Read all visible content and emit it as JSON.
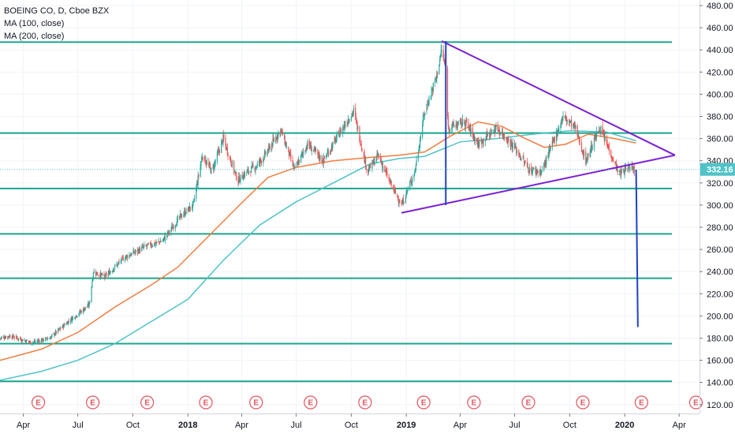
{
  "legend": {
    "symbol_line": "BOEING CO, D, Cboe BZX",
    "ma100_label": "MA (100, close)",
    "ma200_label": "MA (200, close)"
  },
  "colors": {
    "up": "#26a69a",
    "down": "#ef5350",
    "ma100": "#f57c3f",
    "ma200": "#4fc3c7",
    "levels": "#1aa58b",
    "triangle": "#7b1fd6",
    "projection": "#1e40c8",
    "price_label_bg": "#4fc3c7",
    "events": "#e2555e"
  },
  "price_label": "332.16",
  "event_marker": "E",
  "chart_data": {
    "type": "candlestick",
    "title": "BOEING CO, D, Cboe BZX",
    "xlabel": "",
    "ylabel": "",
    "ylim": [
      112,
      485
    ],
    "x_range": [
      "2017-02-21",
      "2020-05-05"
    ],
    "y_ticks": [
      "120.00",
      "140.00",
      "160.00",
      "180.00",
      "200.00",
      "220.00",
      "240.00",
      "260.00",
      "280.00",
      "300.00",
      "320.00",
      "340.00",
      "360.00",
      "380.00",
      "400.00",
      "420.00",
      "440.00",
      "460.00",
      "480.00"
    ],
    "x_ticks": [
      {
        "label": "Apr",
        "date": "2017-04-01",
        "bold": false
      },
      {
        "label": "Jul",
        "date": "2017-07-01",
        "bold": false
      },
      {
        "label": "Oct",
        "date": "2017-10-01",
        "bold": false
      },
      {
        "label": "2018",
        "date": "2018-01-01",
        "bold": true
      },
      {
        "label": "Apr",
        "date": "2018-04-01",
        "bold": false
      },
      {
        "label": "Jul",
        "date": "2018-07-01",
        "bold": false
      },
      {
        "label": "Oct",
        "date": "2018-10-01",
        "bold": false
      },
      {
        "label": "2019",
        "date": "2019-01-01",
        "bold": true
      },
      {
        "label": "Apr",
        "date": "2019-04-01",
        "bold": false
      },
      {
        "label": "Jul",
        "date": "2019-07-01",
        "bold": false
      },
      {
        "label": "Oct",
        "date": "2019-10-01",
        "bold": false
      },
      {
        "label": "2020",
        "date": "2020-01-01",
        "bold": true
      },
      {
        "label": "Apr",
        "date": "2020-04-01",
        "bold": false
      }
    ],
    "price_anchors": [
      [
        "2017-02-21",
        180
      ],
      [
        "2017-03-10",
        182
      ],
      [
        "2017-04-15",
        176
      ],
      [
        "2017-05-15",
        180
      ],
      [
        "2017-06-15",
        195
      ],
      [
        "2017-07-20",
        210
      ],
      [
        "2017-07-27",
        240
      ],
      [
        "2017-08-15",
        235
      ],
      [
        "2017-09-15",
        252
      ],
      [
        "2017-10-20",
        262
      ],
      [
        "2017-11-20",
        268
      ],
      [
        "2017-12-20",
        290
      ],
      [
        "2018-01-10",
        300
      ],
      [
        "2018-01-25",
        345
      ],
      [
        "2018-02-10",
        330
      ],
      [
        "2018-03-01",
        360
      ],
      [
        "2018-03-25",
        322
      ],
      [
        "2018-04-10",
        330
      ],
      [
        "2018-04-25",
        335
      ],
      [
        "2018-05-10",
        345
      ],
      [
        "2018-06-05",
        368
      ],
      [
        "2018-06-28",
        332
      ],
      [
        "2018-07-20",
        355
      ],
      [
        "2018-08-15",
        340
      ],
      [
        "2018-09-15",
        368
      ],
      [
        "2018-10-05",
        385
      ],
      [
        "2018-10-28",
        330
      ],
      [
        "2018-11-15",
        345
      ],
      [
        "2018-12-05",
        320
      ],
      [
        "2018-12-24",
        300
      ],
      [
        "2019-01-15",
        330
      ],
      [
        "2019-01-31",
        383
      ],
      [
        "2019-02-20",
        415
      ],
      [
        "2019-03-01",
        440
      ],
      [
        "2019-03-08",
        422
      ],
      [
        "2019-03-12",
        370
      ],
      [
        "2019-04-10",
        375
      ],
      [
        "2019-05-01",
        355
      ],
      [
        "2019-06-01",
        370
      ],
      [
        "2019-07-01",
        352
      ],
      [
        "2019-07-25",
        332
      ],
      [
        "2019-08-15",
        330
      ],
      [
        "2019-09-20",
        380
      ],
      [
        "2019-10-10",
        370
      ],
      [
        "2019-10-28",
        340
      ],
      [
        "2019-11-20",
        370
      ],
      [
        "2019-12-10",
        345
      ],
      [
        "2019-12-23",
        328
      ],
      [
        "2020-01-10",
        335
      ],
      [
        "2020-01-20",
        332
      ]
    ],
    "ma100": [
      [
        "2017-02-21",
        160
      ],
      [
        "2017-05-01",
        170
      ],
      [
        "2017-07-01",
        185
      ],
      [
        "2017-09-01",
        208
      ],
      [
        "2017-11-01",
        228
      ],
      [
        "2017-12-15",
        244
      ],
      [
        "2018-02-01",
        270
      ],
      [
        "2018-04-01",
        302
      ],
      [
        "2018-05-15",
        325
      ],
      [
        "2018-07-01",
        334
      ],
      [
        "2018-09-01",
        340
      ],
      [
        "2018-11-01",
        343
      ],
      [
        "2018-12-20",
        345
      ],
      [
        "2019-02-01",
        348
      ],
      [
        "2019-03-15",
        362
      ],
      [
        "2019-05-01",
        375
      ],
      [
        "2019-06-10",
        371
      ],
      [
        "2019-07-15",
        361
      ],
      [
        "2019-08-20",
        352
      ],
      [
        "2019-09-25",
        355
      ],
      [
        "2019-11-01",
        364
      ],
      [
        "2019-12-15",
        360
      ],
      [
        "2020-01-20",
        356
      ]
    ],
    "ma200": [
      [
        "2017-02-21",
        142
      ],
      [
        "2017-05-01",
        150
      ],
      [
        "2017-07-01",
        160
      ],
      [
        "2017-09-01",
        175
      ],
      [
        "2017-11-01",
        195
      ],
      [
        "2018-01-01",
        215
      ],
      [
        "2018-03-01",
        250
      ],
      [
        "2018-05-01",
        282
      ],
      [
        "2018-07-01",
        303
      ],
      [
        "2018-09-01",
        320
      ],
      [
        "2018-11-01",
        337
      ],
      [
        "2018-12-20",
        342
      ],
      [
        "2019-02-01",
        344
      ],
      [
        "2019-04-01",
        357
      ],
      [
        "2019-06-01",
        360
      ],
      [
        "2019-08-01",
        364
      ],
      [
        "2019-10-01",
        367
      ],
      [
        "2019-12-01",
        366
      ],
      [
        "2020-01-20",
        358
      ]
    ],
    "horizontal_levels": [
      447,
      365,
      315,
      274,
      234,
      175,
      141
    ],
    "triangle": {
      "upper": [
        [
          "2019-03-01",
          448
        ],
        [
          "2020-03-25",
          345
        ]
      ],
      "lower": [
        [
          "2018-12-24",
          293
        ],
        [
          "2020-03-25",
          345
        ]
      ],
      "apex_vertical": [
        [
          "2019-03-08",
          300
        ],
        [
          "2019-03-08",
          448
        ]
      ],
      "projection": [
        [
          "2020-01-20",
          332
        ],
        [
          "2020-01-23",
          190
        ]
      ]
    },
    "earnings_events": [
      "2017-04-26",
      "2017-07-26",
      "2017-10-25",
      "2018-01-31",
      "2018-04-25",
      "2018-07-25",
      "2018-10-24",
      "2019-01-30",
      "2019-04-24",
      "2019-07-24",
      "2019-10-23",
      "2020-01-29",
      "2020-04-29"
    ],
    "last_price": 332.16
  }
}
